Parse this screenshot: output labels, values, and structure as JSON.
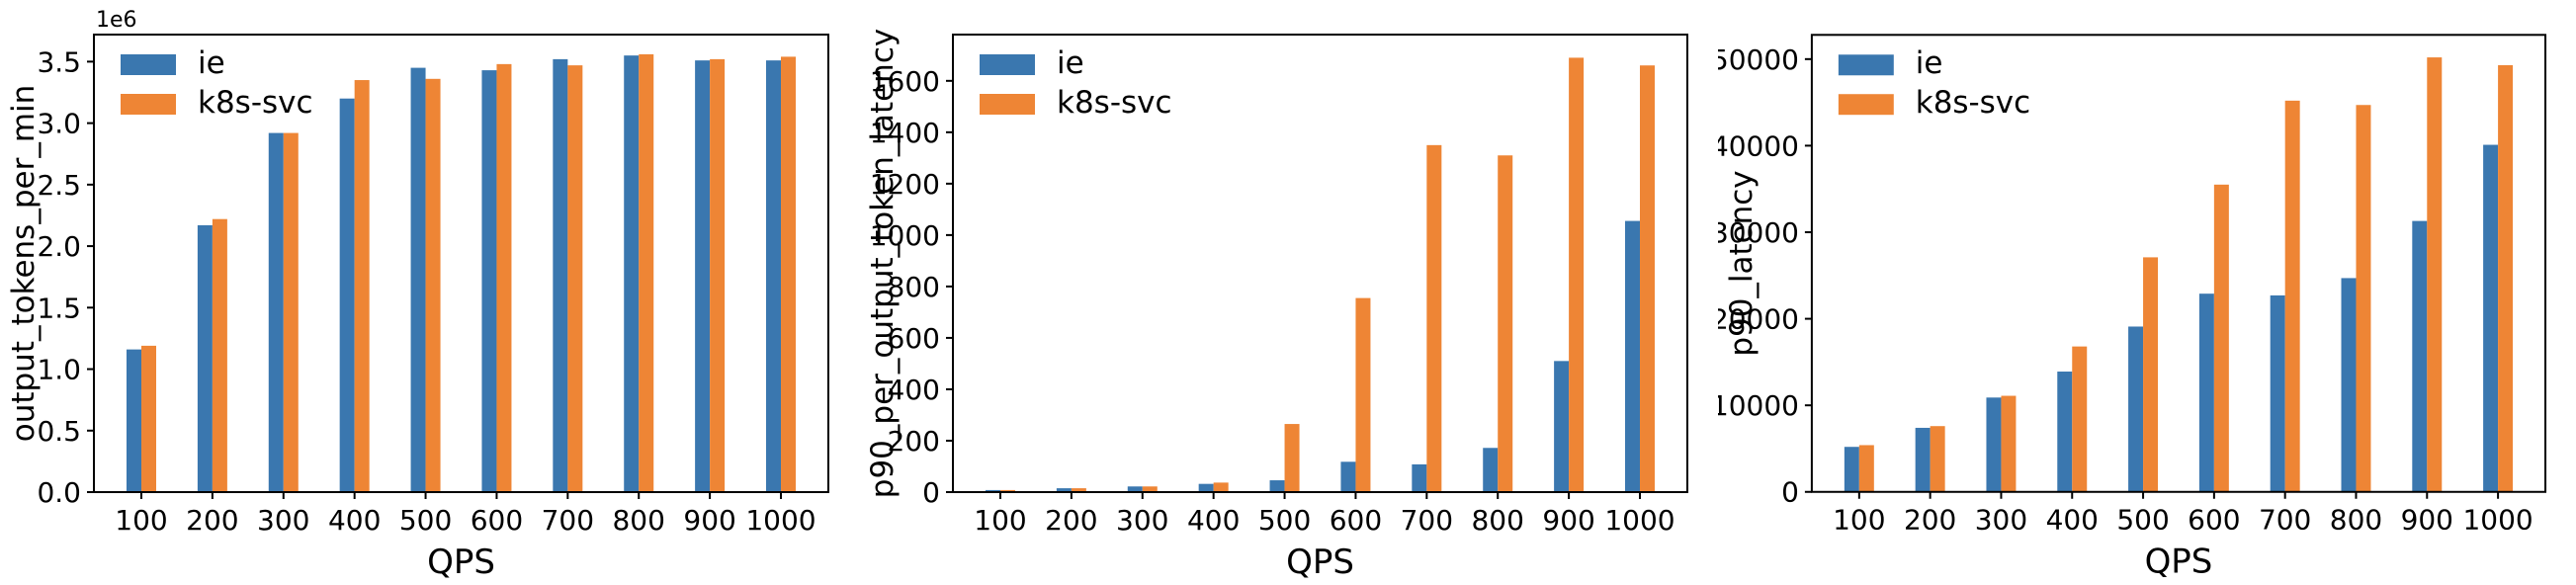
{
  "figure": {
    "background": "#ffffff",
    "axis_color": "#000000",
    "series_colors": {
      "ie": "#3a77af",
      "k8s-svc": "#ee8535"
    },
    "legend": {
      "position": "upper-left",
      "entries": [
        {
          "label": "ie",
          "color": "#3a77af"
        },
        {
          "label": "k8s-svc",
          "color": "#ee8535"
        }
      ]
    }
  },
  "chart_data": [
    {
      "type": "bar",
      "title": "",
      "xlabel": "QPS",
      "ylabel": "output_tokens_per_min",
      "offset_text": "1e6",
      "grid": false,
      "legend_position": "upper left",
      "categories": [
        100,
        200,
        300,
        400,
        500,
        600,
        700,
        800,
        900,
        1000
      ],
      "series": [
        {
          "name": "ie",
          "color": "#3a77af",
          "values": [
            1160000,
            2170000,
            2920000,
            3200000,
            3450000,
            3430000,
            3520000,
            3550000,
            3510000,
            3510000
          ]
        },
        {
          "name": "k8s-svc",
          "color": "#ee8535",
          "values": [
            1190000,
            2220000,
            2920000,
            3350000,
            3360000,
            3480000,
            3470000,
            3560000,
            3520000,
            3540000
          ]
        }
      ],
      "ylim": [
        0,
        3720000
      ],
      "yticks": {
        "values": [
          0,
          500000,
          1000000,
          1500000,
          2000000,
          2500000,
          3000000,
          3500000
        ],
        "labels": [
          "0.0",
          "0.5",
          "1.0",
          "1.5",
          "2.0",
          "2.5",
          "3.0",
          "3.5"
        ]
      }
    },
    {
      "type": "bar",
      "title": "",
      "xlabel": "QPS",
      "ylabel": "p90_per_output_token_latency",
      "offset_text": "",
      "grid": false,
      "legend_position": "upper left",
      "categories": [
        100,
        200,
        300,
        400,
        500,
        600,
        700,
        800,
        900,
        1000
      ],
      "series": [
        {
          "name": "ie",
          "color": "#3a77af",
          "values": [
            8,
            15,
            22,
            32,
            46,
            118,
            108,
            172,
            510,
            1055
          ]
        },
        {
          "name": "k8s-svc",
          "color": "#ee8535",
          "values": [
            8,
            15,
            22,
            37,
            265,
            755,
            1350,
            1310,
            1690,
            1660
          ]
        }
      ],
      "ylim": [
        0,
        1780
      ],
      "yticks": {
        "values": [
          0,
          200,
          400,
          600,
          800,
          1000,
          1200,
          1400,
          1600
        ],
        "labels": [
          "0",
          "200",
          "400",
          "600",
          "800",
          "1000",
          "1200",
          "1400",
          "1600"
        ]
      }
    },
    {
      "type": "bar",
      "title": "",
      "xlabel": "QPS",
      "ylabel": "p90_latency",
      "offset_text": "",
      "grid": false,
      "legend_position": "upper left",
      "categories": [
        100,
        200,
        300,
        400,
        500,
        600,
        700,
        800,
        900,
        1000
      ],
      "series": [
        {
          "name": "ie",
          "color": "#3a77af",
          "values": [
            5200,
            7400,
            10900,
            13900,
            19100,
            22900,
            22700,
            24700,
            31300,
            40100
          ]
        },
        {
          "name": "k8s-svc",
          "color": "#ee8535",
          "values": [
            5400,
            7600,
            11100,
            16800,
            27100,
            35500,
            45200,
            44700,
            50200,
            49300
          ]
        }
      ],
      "ylim": [
        0,
        52800
      ],
      "yticks": {
        "values": [
          0,
          10000,
          20000,
          30000,
          40000,
          50000
        ],
        "labels": [
          "0",
          "10000",
          "20000",
          "30000",
          "40000",
          "50000"
        ]
      }
    }
  ]
}
